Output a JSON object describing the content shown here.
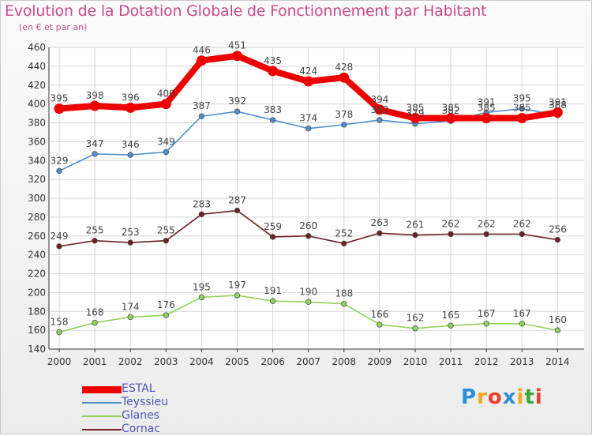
{
  "title": "Evolution de la Dotation Globale de Fonctionnement par Habitant",
  "subtitle": "(en € et par an)",
  "chart_data": {
    "type": "line",
    "x": [
      "2000",
      "2001",
      "2002",
      "2003",
      "2004",
      "2005",
      "2006",
      "2007",
      "2008",
      "2009",
      "2010",
      "2011",
      "2012",
      "2013",
      "2014"
    ],
    "ylim": [
      140,
      460
    ],
    "yticks": [
      140,
      160,
      180,
      200,
      220,
      240,
      260,
      280,
      300,
      320,
      340,
      360,
      380,
      400,
      420,
      440,
      460
    ],
    "grid": true,
    "legend_position": "bottom-left",
    "series": [
      {
        "name": "ESTAL",
        "color": "#ee0000",
        "values": [
          395,
          398,
          396,
          400,
          446,
          451,
          435,
          424,
          428,
          394,
          385,
          385,
          385,
          385,
          391
        ]
      },
      {
        "name": "Teyssieu",
        "color": "#4f8fd1",
        "values": [
          329,
          347,
          346,
          349,
          387,
          392,
          383,
          374,
          378,
          383,
          379,
          382,
          391,
          395,
          388
        ]
      },
      {
        "name": "Glanes",
        "color": "#8fd45a",
        "values": [
          158,
          168,
          174,
          176,
          195,
          197,
          191,
          190,
          188,
          166,
          162,
          165,
          167,
          167,
          160
        ]
      },
      {
        "name": "Cornac",
        "color": "#6b1f24",
        "values": [
          249,
          255,
          253,
          255,
          283,
          287,
          259,
          260,
          252,
          263,
          261,
          262,
          262,
          262,
          256
        ]
      }
    ]
  },
  "logo": {
    "text": "Proxiti",
    "colors": [
      "#2a8fd8",
      "#f2a81c",
      "#e8402c",
      "#2a8fd8",
      "#f2a81c",
      "#3aa83a",
      "#e8402c"
    ]
  }
}
